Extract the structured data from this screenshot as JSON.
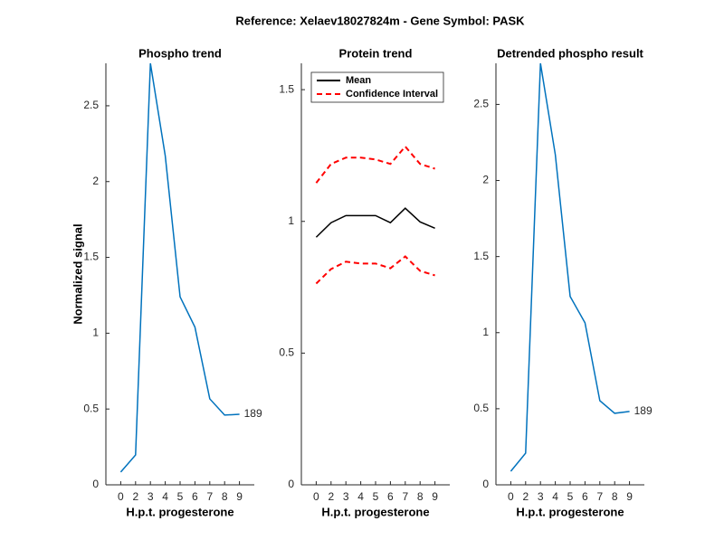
{
  "title": "Reference:  Xelaev18027824m - Gene Symbol:  PASK",
  "chart_data": [
    {
      "type": "line",
      "title": "Phospho trend",
      "x_label": "H.p.t. progesterone",
      "y_label": "Normalized signal",
      "categories": [
        "0",
        "2",
        "3",
        "4",
        "5",
        "6",
        "7",
        "8",
        "9"
      ],
      "values": [
        0.084,
        0.197,
        2.78,
        2.17,
        1.24,
        1.04,
        0.567,
        0.46,
        0.465
      ],
      "color": "#0072bd",
      "annotation": "189",
      "ylim": [
        0,
        2.78
      ],
      "yticks": [
        0,
        0.5,
        1,
        1.5,
        2,
        2.5
      ]
    },
    {
      "type": "band-line",
      "title": "Protein trend",
      "x_label": "H.p.t. progesterone",
      "categories": [
        "0",
        "2",
        "3",
        "4",
        "5",
        "6",
        "7",
        "8",
        "9"
      ],
      "series": [
        {
          "name": "Mean",
          "color": "#000000",
          "values": [
            0.94,
            0.995,
            1.022,
            1.022,
            1.022,
            0.995,
            1.05,
            0.998,
            0.974
          ]
        },
        {
          "name": "Confidence Interval",
          "color": "#ff0000",
          "dashed": true,
          "upper": [
            1.146,
            1.218,
            1.242,
            1.242,
            1.235,
            1.218,
            1.284,
            1.218,
            1.2
          ],
          "lower": [
            0.764,
            0.819,
            0.847,
            0.84,
            0.84,
            0.822,
            0.867,
            0.812,
            0.795
          ]
        }
      ],
      "legend": "northwest",
      "ylim": [
        0,
        1.6
      ],
      "yticks": [
        0,
        0.5,
        1,
        1.5
      ]
    },
    {
      "type": "line",
      "title": "Detrended phospho result",
      "x_label": "H.p.t. progesterone",
      "categories": [
        "0",
        "2",
        "3",
        "4",
        "5",
        "6",
        "7",
        "8",
        "9"
      ],
      "values": [
        0.089,
        0.208,
        2.77,
        2.17,
        1.238,
        1.065,
        0.553,
        0.47,
        0.482
      ],
      "color": "#0072bd",
      "annotation": "189",
      "ylim": [
        0,
        2.77
      ],
      "yticks": [
        0,
        0.5,
        1,
        1.5,
        2,
        2.5
      ]
    }
  ]
}
